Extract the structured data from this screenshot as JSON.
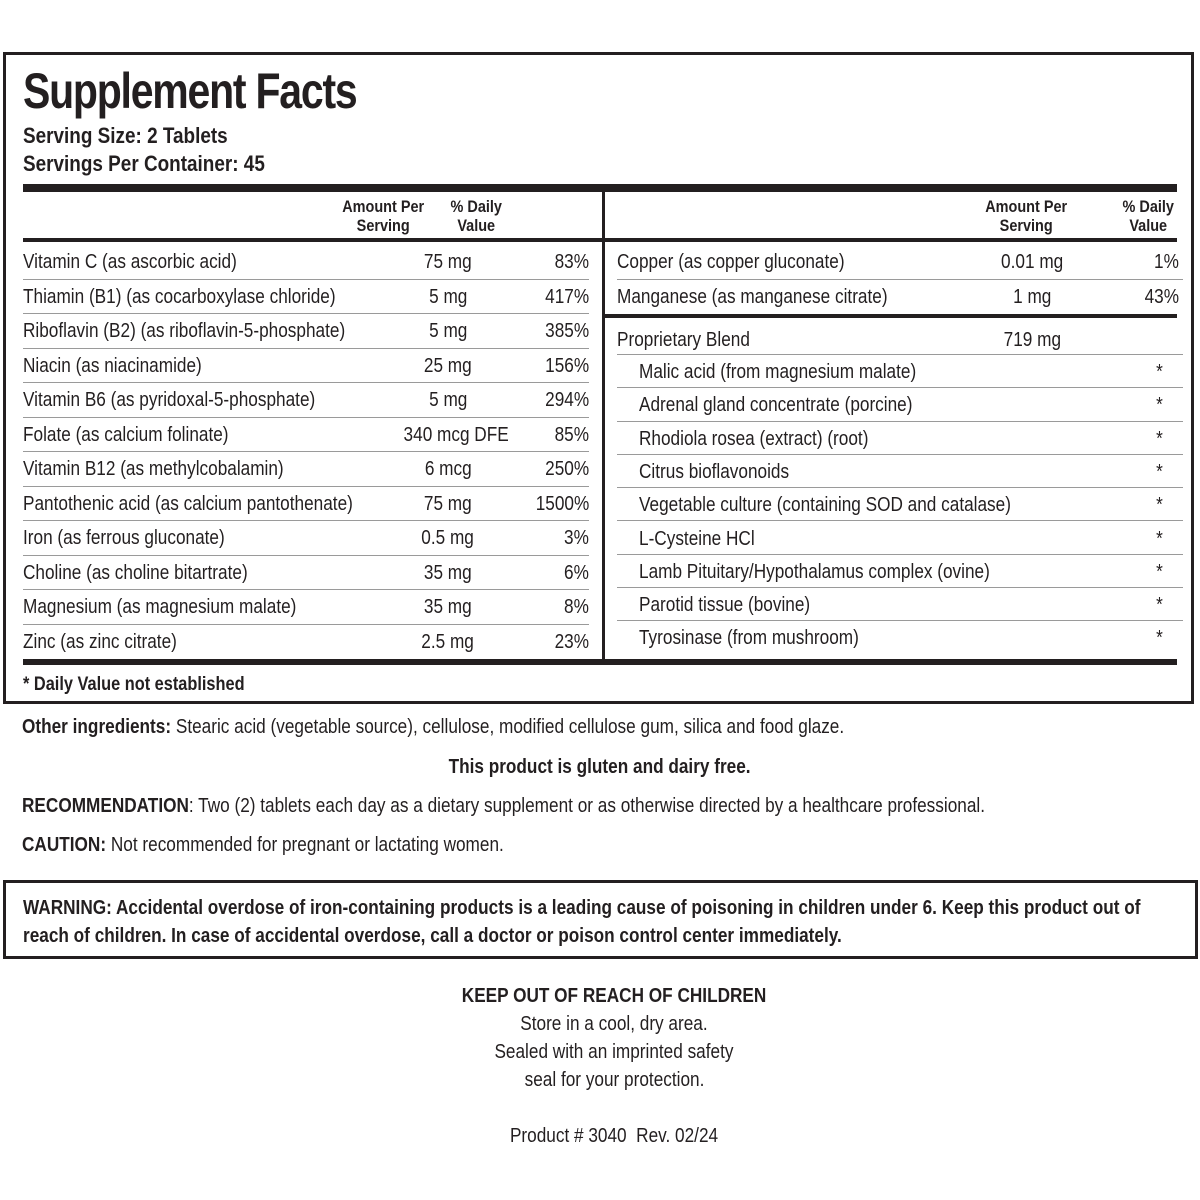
{
  "panel": {
    "title": "Supplement Facts",
    "serving_size": "Serving Size: 2 Tablets",
    "servings_per_container": "Servings Per Container: 45",
    "header_amount_line1": "Amount Per",
    "header_amount_line2": "Serving",
    "header_dv_line1": "% Daily",
    "header_dv_line2": "Value",
    "footnote": "* Daily Value not established"
  },
  "left_rows": [
    {
      "name": "Vitamin C (as ascorbic acid)",
      "amount": "75 mg",
      "dv": "83%"
    },
    {
      "name": "Thiamin (B1) (as cocarboxylase chloride)",
      "amount": "5 mg",
      "dv": "417%"
    },
    {
      "name": "Riboflavin (B2) (as riboflavin-5-phosphate)",
      "amount": "5 mg",
      "dv": "385%"
    },
    {
      "name": "Niacin (as niacinamide)",
      "amount": "25 mg",
      "dv": "156%"
    },
    {
      "name": "Vitamin B6 (as pyridoxal-5-phosphate)",
      "amount": "5 mg",
      "dv": "294%"
    },
    {
      "name": "Folate (as calcium folinate)",
      "amount": "340 mcg DFE",
      "dv": "85%"
    },
    {
      "name": "Vitamin B12 (as methylcobalamin)",
      "amount": "6 mcg",
      "dv": "250%"
    },
    {
      "name": "Pantothenic acid (as calcium pantothenate)",
      "amount": "75 mg",
      "dv": "1500%"
    },
    {
      "name": "Iron (as ferrous gluconate)",
      "amount": "0.5 mg",
      "dv": "3%"
    },
    {
      "name": "Choline (as choline bitartrate)",
      "amount": "35 mg",
      "dv": "6%"
    },
    {
      "name": "Magnesium (as magnesium malate)",
      "amount": "35 mg",
      "dv": "8%"
    },
    {
      "name": "Zinc (as zinc citrate)",
      "amount": "2.5 mg",
      "dv": "23%"
    }
  ],
  "right_rows": [
    {
      "name": "Copper (as copper gluconate)",
      "amount": "0.01 mg",
      "dv": "1%"
    },
    {
      "name": "Manganese (as manganese citrate)",
      "amount": "1 mg",
      "dv": "43%"
    }
  ],
  "blend": {
    "name": "Proprietary Blend",
    "amount": "719 mg",
    "items": [
      {
        "name": "Malic acid (from magnesium malate)",
        "dv": "*"
      },
      {
        "name": "Adrenal gland concentrate (porcine)",
        "dv": "*"
      },
      {
        "name": "Rhodiola rosea (extract) (root)",
        "dv": "*"
      },
      {
        "name": "Citrus bioflavonoids",
        "dv": "*"
      },
      {
        "name": "Vegetable culture (containing SOD and catalase)",
        "dv": "*"
      },
      {
        "name": "L-Cysteine HCl",
        "dv": "*"
      },
      {
        "name": "Lamb Pituitary/Hypothalamus complex (ovine)",
        "dv": "*"
      },
      {
        "name": "Parotid tissue (bovine)",
        "dv": "*"
      },
      {
        "name": "Tyrosinase (from mushroom)",
        "dv": "*"
      }
    ]
  },
  "text": {
    "other_label": "Other ingredients:",
    "other_value": " Stearic acid (vegetable source), cellulose, modified cellulose gum, silica and food glaze.",
    "gluten": "This product is gluten and dairy free.",
    "rec_label": "RECOMMENDATION",
    "rec_value": ": Two (2) tablets each day as a dietary supplement or as otherwise directed by a healthcare professional.",
    "caution_label": "CAUTION:",
    "caution_value": " Not recommended for pregnant or lactating women."
  },
  "warning": "WARNING: Accidental overdose of iron-containing products is a leading cause of poisoning in children under 6. Keep this product out of reach of children. In case of accidental overdose, call a doctor or poison control center immediately.",
  "storage": {
    "heading": "KEEP OUT OF REACH OF CHILDREN",
    "line1": "Store in a cool, dry area.",
    "line2": "Sealed with an imprinted safety",
    "line3": "seal for your protection."
  },
  "product_line": "Product # 3040  Rev. 02/24"
}
